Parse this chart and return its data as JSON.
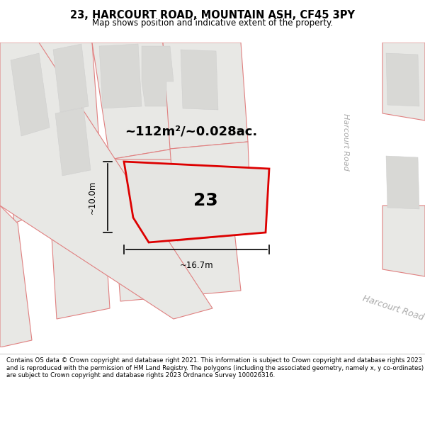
{
  "title": "23, HARCOURT ROAD, MOUNTAIN ASH, CF45 3PY",
  "subtitle": "Map shows position and indicative extent of the property.",
  "footer": "Contains OS data © Crown copyright and database right 2021. This information is subject to Crown copyright and database rights 2023 and is reproduced with the permission of HM Land Registry. The polygons (including the associated geometry, namely x, y co-ordinates) are subject to Crown copyright and database rights 2023 Ordnance Survey 100026316.",
  "area_text": "~112m²/~0.028ac.",
  "width_text": "~16.7m",
  "height_text": "~10.0m",
  "plot_number": "23",
  "map_bg": "#f7f7f5",
  "parcel_fill": "#e8e8e5",
  "parcel_edge": "#e08080",
  "building_fill": "#d8d8d5",
  "road_fill": "#ffffff",
  "red_edge": "#dd0000",
  "red_fill": "#e5e5e2",
  "road_label_color": "#aaaaaa",
  "green_fill": "#d5e8cc"
}
